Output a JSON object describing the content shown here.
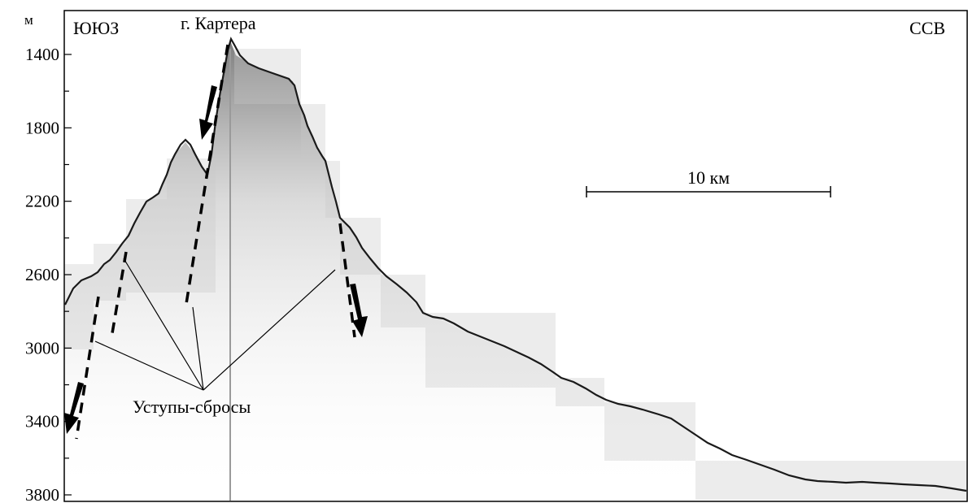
{
  "y_axis": {
    "unit": "м",
    "ticks": [
      "1400",
      "1800",
      "2200",
      "2600",
      "3000",
      "3400",
      "3800"
    ]
  },
  "labels": {
    "left_direction": "ЮЮЗ",
    "right_direction": "ССВ",
    "peak": "г. Картера",
    "scale_bar": "10 км",
    "faults": "Уступы-сбросы"
  },
  "colors": {
    "frame": "#000000",
    "seafloor_echo": "#1a1a1a",
    "echo_fill": "#9a9a9a"
  }
}
